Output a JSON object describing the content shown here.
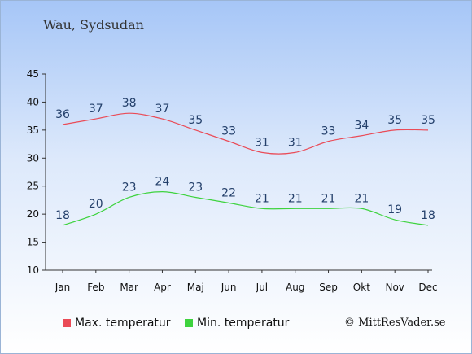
{
  "location": "Wau, Sydsudan",
  "credit": "© MittResVader.se",
  "colors": {
    "max": "#ea4b57",
    "min": "#3ed33e",
    "axis": "#333333"
  },
  "chart_data": {
    "type": "line",
    "categories": [
      "Jan",
      "Feb",
      "Mar",
      "Apr",
      "Maj",
      "Jun",
      "Jul",
      "Aug",
      "Sep",
      "Okt",
      "Nov",
      "Dec"
    ],
    "y_ticks": [
      10,
      15,
      20,
      25,
      30,
      35,
      40,
      45
    ],
    "ylim": [
      10,
      45
    ],
    "grid": false,
    "legend_position": "bottom-left",
    "series": [
      {
        "name": "Max. temperatur",
        "color": "#ea4b57",
        "values": [
          36,
          37,
          38,
          37,
          35,
          33,
          31,
          31,
          33,
          34,
          35,
          35
        ]
      },
      {
        "name": "Min. temperatur",
        "color": "#3ed33e",
        "values": [
          18,
          20,
          23,
          24,
          23,
          22,
          21,
          21,
          21,
          21,
          19,
          18
        ]
      }
    ]
  }
}
